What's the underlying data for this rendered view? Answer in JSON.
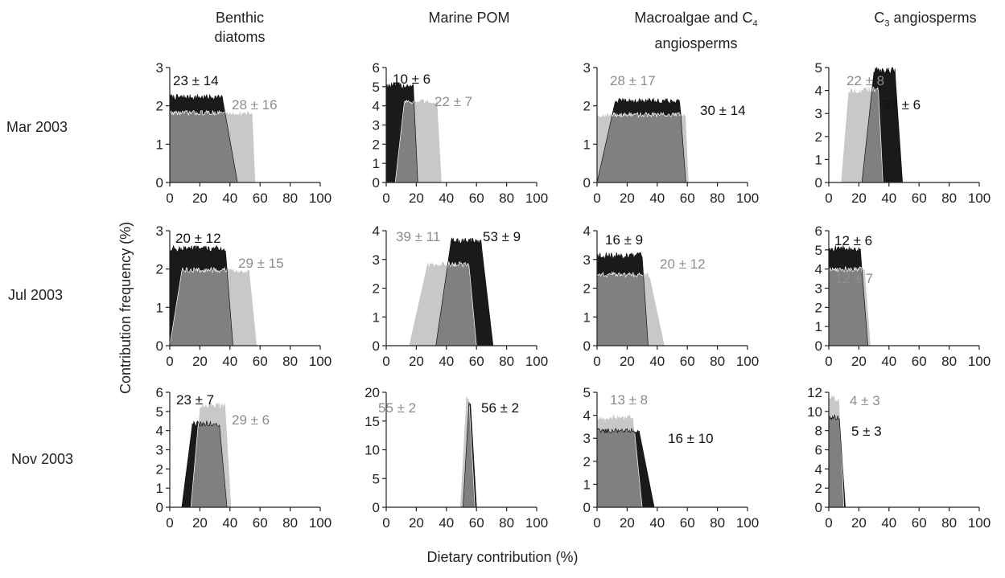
{
  "figure": {
    "col_titles": [
      {
        "line1": "Benthic",
        "line2": "diatoms"
      },
      {
        "line1": "Marine POM",
        "line2": ""
      },
      {
        "line1": "Macroalgae and C",
        "sub1": "4",
        "line2": "angiosperms"
      },
      {
        "line1": "C",
        "sub1": "3",
        "rest1": " angiosperms",
        "line2": ""
      }
    ],
    "row_labels": [
      "Mar 2003",
      "Jul 2003",
      "Nov 2003"
    ],
    "ylabel": "Contribution frequency (%)",
    "xlabel": "Dietary contribution (%)",
    "colors": {
      "black": "#1a1a1a",
      "light": "#c8c8c8",
      "overlap": "#808080"
    }
  },
  "chart_data": [
    {
      "type": "area",
      "row": "Mar 2003",
      "column": "Benthic diatoms",
      "xlim": [
        0,
        100
      ],
      "ylim": [
        0,
        3
      ],
      "yticks": [
        0,
        1,
        2,
        3
      ],
      "xticks": [
        0,
        20,
        40,
        60,
        80,
        100
      ],
      "series": [
        {
          "color": "black",
          "label": "23 ± 14",
          "range": [
            0,
            45
          ],
          "height": 2.2,
          "ramp_in": 0,
          "ramp_out": 10
        },
        {
          "color": "light",
          "label": "28 ± 16",
          "range": [
            0,
            57
          ],
          "height": 1.8,
          "ramp_in": 0,
          "ramp_out": 2
        }
      ]
    },
    {
      "type": "area",
      "row": "Mar 2003",
      "column": "Marine POM",
      "xlim": [
        0,
        100
      ],
      "ylim": [
        0,
        6
      ],
      "yticks": [
        0,
        1,
        2,
        3,
        4,
        5,
        6
      ],
      "xticks": [
        0,
        20,
        40,
        60,
        80,
        100
      ],
      "series": [
        {
          "color": "black",
          "label": "10 ± 6",
          "range": [
            0,
            21
          ],
          "height": 5.0,
          "ramp_in": 0,
          "ramp_out": 3
        },
        {
          "color": "light",
          "label": "22 ± 7",
          "range": [
            6,
            37
          ],
          "height": 4.2,
          "ramp_in": 6,
          "ramp_out": 3
        }
      ]
    },
    {
      "type": "area",
      "row": "Mar 2003",
      "column": "Macroalgae and C4 angiosperms",
      "xlim": [
        0,
        100
      ],
      "ylim": [
        0,
        3
      ],
      "yticks": [
        0,
        1,
        2,
        3
      ],
      "xticks": [
        0,
        20,
        40,
        60,
        80,
        100
      ],
      "series": [
        {
          "color": "black",
          "label": "30 ± 14",
          "range": [
            0,
            59
          ],
          "height": 2.1,
          "ramp_in": 12,
          "ramp_out": 4
        },
        {
          "color": "light",
          "label": "28 ± 17",
          "range": [
            0,
            61
          ],
          "height": 1.75,
          "ramp_in": 0,
          "ramp_out": 2
        }
      ]
    },
    {
      "type": "area",
      "row": "Mar 2003",
      "column": "C3 angiosperms",
      "xlim": [
        0,
        100
      ],
      "ylim": [
        0,
        5
      ],
      "yticks": [
        0,
        1,
        2,
        3,
        4,
        5
      ],
      "xticks": [
        0,
        20,
        40,
        60,
        80,
        100
      ],
      "series": [
        {
          "color": "black",
          "label": "37 ± 6",
          "range": [
            22,
            49
          ],
          "height": 4.8,
          "ramp_in": 8,
          "ramp_out": 5
        },
        {
          "color": "light",
          "label": "22 ± 8",
          "range": [
            8,
            36
          ],
          "height": 4.0,
          "ramp_in": 5,
          "ramp_out": 3
        }
      ]
    },
    {
      "type": "area",
      "row": "Jul 2003",
      "column": "Benthic diatoms",
      "xlim": [
        0,
        100
      ],
      "ylim": [
        0,
        3
      ],
      "yticks": [
        0,
        1,
        2,
        3
      ],
      "xticks": [
        0,
        20,
        40,
        60,
        80,
        100
      ],
      "series": [
        {
          "color": "black",
          "label": "20 ± 12",
          "range": [
            0,
            42
          ],
          "height": 2.5,
          "ramp_in": 0,
          "ramp_out": 5
        },
        {
          "color": "light",
          "label": "29 ± 15",
          "range": [
            0,
            58
          ],
          "height": 1.95,
          "ramp_in": 8,
          "ramp_out": 5
        }
      ]
    },
    {
      "type": "area",
      "row": "Jul 2003",
      "column": "Marine POM",
      "xlim": [
        0,
        100
      ],
      "ylim": [
        0,
        4
      ],
      "yticks": [
        0,
        1,
        2,
        3,
        4
      ],
      "xticks": [
        0,
        20,
        40,
        60,
        80,
        100
      ],
      "series": [
        {
          "color": "black",
          "label": "53 ± 9",
          "range": [
            33,
            71
          ],
          "height": 3.6,
          "ramp_in": 10,
          "ramp_out": 8
        },
        {
          "color": "light",
          "label": "39 ± 11",
          "range": [
            15,
            60
          ],
          "height": 2.8,
          "ramp_in": 12,
          "ramp_out": 5
        }
      ]
    },
    {
      "type": "area",
      "row": "Jul 2003",
      "column": "Macroalgae and C4 angiosperms",
      "xlim": [
        0,
        100
      ],
      "ylim": [
        0,
        4
      ],
      "yticks": [
        0,
        1,
        2,
        3,
        4
      ],
      "xticks": [
        0,
        20,
        40,
        60,
        80,
        100
      ],
      "series": [
        {
          "color": "black",
          "label": "16 ± 9",
          "range": [
            0,
            34
          ],
          "height": 3.1,
          "ramp_in": 0,
          "ramp_out": 4
        },
        {
          "color": "light",
          "label": "20 ± 12",
          "range": [
            0,
            45
          ],
          "height": 2.45,
          "ramp_in": 0,
          "ramp_out": 10
        }
      ]
    },
    {
      "type": "area",
      "row": "Jul 2003",
      "column": "C3 angiosperms",
      "xlim": [
        0,
        100
      ],
      "ylim": [
        0,
        6
      ],
      "yticks": [
        0,
        1,
        2,
        3,
        4,
        5,
        6
      ],
      "xticks": [
        0,
        20,
        40,
        60,
        80,
        100
      ],
      "series": [
        {
          "color": "black",
          "label": "12 ± 6",
          "range": [
            0,
            26
          ],
          "height": 5.0,
          "ramp_in": 0,
          "ramp_out": 5
        },
        {
          "color": "light",
          "label": "12 ± 7",
          "range": [
            0,
            28
          ],
          "height": 3.95,
          "ramp_in": 0,
          "ramp_out": 4
        }
      ]
    },
    {
      "type": "area",
      "row": "Nov 2003",
      "column": "Benthic diatoms",
      "xlim": [
        0,
        100
      ],
      "ylim": [
        0,
        6
      ],
      "yticks": [
        0,
        1,
        2,
        3,
        4,
        5,
        6
      ],
      "xticks": [
        0,
        20,
        40,
        60,
        80,
        100
      ],
      "series": [
        {
          "color": "black",
          "label": "23 ± 7",
          "range": [
            8,
            38
          ],
          "height": 4.3,
          "ramp_in": 7,
          "ramp_out": 5
        },
        {
          "color": "light",
          "label": "29 ± 6",
          "range": [
            14,
            41
          ],
          "height": 5.3,
          "ramp_in": 6,
          "ramp_out": 4
        }
      ]
    },
    {
      "type": "area",
      "row": "Nov 2003",
      "column": "Marine POM",
      "xlim": [
        0,
        100
      ],
      "ylim": [
        0,
        20
      ],
      "yticks": [
        0,
        5,
        10,
        15,
        20
      ],
      "xticks": [
        0,
        20,
        40,
        60,
        80,
        100
      ],
      "series": [
        {
          "color": "black",
          "label": "56 ± 2",
          "range": [
            51,
            60
          ],
          "height": 18.0,
          "ramp_in": 4,
          "ramp_out": 4
        },
        {
          "color": "light",
          "label": "55 ± 2",
          "range": [
            49,
            59
          ],
          "height": 18.8,
          "ramp_in": 4,
          "ramp_out": 4
        }
      ]
    },
    {
      "type": "area",
      "row": "Nov 2003",
      "column": "Macroalgae and C4 angiosperms",
      "xlim": [
        0,
        100
      ],
      "ylim": [
        0,
        5
      ],
      "yticks": [
        0,
        1,
        2,
        3,
        4,
        5
      ],
      "xticks": [
        0,
        20,
        40,
        60,
        80,
        100
      ],
      "series": [
        {
          "color": "black",
          "label": "16 ± 10",
          "range": [
            0,
            38
          ],
          "height": 3.3,
          "ramp_in": 0,
          "ramp_out": 10
        },
        {
          "color": "light",
          "label": "13 ± 8",
          "range": [
            0,
            30
          ],
          "height": 3.9,
          "ramp_in": 0,
          "ramp_out": 6
        }
      ]
    },
    {
      "type": "area",
      "row": "Nov 2003",
      "column": "C3 angiosperms",
      "xlim": [
        0,
        100
      ],
      "ylim": [
        0,
        12
      ],
      "yticks": [
        0,
        2,
        4,
        6,
        8,
        10,
        12
      ],
      "xticks": [
        0,
        20,
        40,
        60,
        80,
        100
      ],
      "series": [
        {
          "color": "black",
          "label": "5 ± 3",
          "range": [
            0,
            11
          ],
          "height": 9.3,
          "ramp_in": 0,
          "ramp_out": 4
        },
        {
          "color": "light",
          "label": "4 ± 3",
          "range": [
            0,
            10
          ],
          "height": 11.3,
          "ramp_in": 0,
          "ramp_out": 3
        }
      ]
    }
  ]
}
